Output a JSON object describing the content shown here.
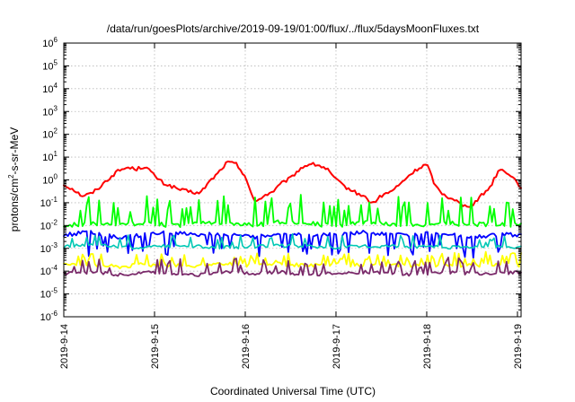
{
  "chart_data": {
    "type": "line",
    "title": "/data/run/goesPlots/archive/2019-09-19/01:00/flux/../flux/5daysMoonFluxes.txt",
    "xlabel": "Coordinated Universal Time (UTC)",
    "ylabel": "protons/cm²-s-sr-MeV",
    "ylabel_parts": {
      "pre": "protons/cm",
      "sup": "2",
      "post": "-s-sr-MeV"
    },
    "y_scale": "log",
    "ylim": [
      1e-06,
      1000000.0
    ],
    "y_tick_labels": [
      {
        "base": "10",
        "exp": "-6"
      },
      {
        "base": "10",
        "exp": "-5"
      },
      {
        "base": "10",
        "exp": "-4"
      },
      {
        "base": "10",
        "exp": "-3"
      },
      {
        "base": "10",
        "exp": "-2"
      },
      {
        "base": "10",
        "exp": "-1"
      },
      {
        "base": "10",
        "exp": "0"
      },
      {
        "base": "10",
        "exp": "1"
      },
      {
        "base": "10",
        "exp": "2"
      },
      {
        "base": "10",
        "exp": "3"
      },
      {
        "base": "10",
        "exp": "4"
      },
      {
        "base": "10",
        "exp": "5"
      },
      {
        "base": "10",
        "exp": "6"
      }
    ],
    "xlim": [
      "2019-09-14T00:00",
      "2019-09-19T01:00"
    ],
    "x_tick_labels": [
      "2019-9-14",
      "2019-9-15",
      "2019-9-16",
      "2019-9-17",
      "2019-9-18",
      "2019-9-19"
    ],
    "grid": true,
    "legend": "none",
    "series": [
      {
        "color": "#ff0000",
        "x": [
          0,
          0.1,
          0.2,
          0.3,
          0.4,
          0.5,
          0.6,
          0.7,
          0.8,
          0.9,
          1.0,
          1.1,
          1.2,
          1.3,
          1.4,
          1.5,
          1.6,
          1.7,
          1.8,
          1.9,
          2.0,
          2.1,
          2.2,
          2.3,
          2.4,
          2.5,
          2.6,
          2.7,
          2.8,
          2.9,
          3.0,
          3.1,
          3.2,
          3.3,
          3.4,
          3.5,
          3.6,
          3.7,
          3.8,
          3.9,
          4.0,
          4.1,
          4.2,
          4.3,
          4.4,
          4.5,
          4.6,
          4.7,
          4.8,
          4.9,
          5.0,
          5.04
        ],
        "y": [
          0.6,
          0.4,
          0.2,
          0.25,
          0.5,
          1.2,
          2.5,
          3.5,
          3.0,
          4.0,
          1.5,
          0.7,
          0.5,
          0.35,
          0.3,
          0.25,
          0.8,
          2.0,
          6.0,
          5.0,
          1.5,
          0.1,
          0.2,
          0.3,
          0.7,
          1.2,
          3.0,
          5.0,
          4.5,
          3.0,
          1.0,
          0.5,
          0.3,
          0.2,
          0.09,
          0.2,
          0.3,
          0.6,
          1.5,
          3.0,
          5.0,
          0.5,
          0.2,
          0.15,
          0.07,
          0.08,
          0.2,
          0.5,
          3.0,
          2.0,
          0.8,
          0.4
        ]
      },
      {
        "color": "#00ff00",
        "x": [
          0,
          0.3,
          0.6,
          0.9,
          1.2,
          1.5,
          1.8,
          2.1,
          2.4,
          2.7,
          3.0,
          3.3,
          3.6,
          3.9,
          4.2,
          4.5,
          4.8,
          5.04
        ],
        "y": [
          0.01,
          0.012,
          0.01,
          0.014,
          0.01,
          0.012,
          0.013,
          0.01,
          0.015,
          0.012,
          0.01,
          0.014,
          0.012,
          0.011,
          0.013,
          0.011,
          0.012,
          0.01
        ]
      },
      {
        "color": "#0000ff",
        "x": [
          0,
          0.3,
          0.6,
          0.9,
          1.2,
          1.5,
          1.8,
          2.1,
          2.4,
          2.7,
          3.0,
          3.3,
          3.6,
          3.9,
          4.2,
          4.5,
          4.8,
          5.04
        ],
        "y": [
          0.004,
          0.005,
          0.003,
          0.004,
          0.005,
          0.004,
          0.004,
          0.003,
          0.005,
          0.004,
          0.004,
          0.005,
          0.004,
          0.004,
          0.005,
          0.003,
          0.004,
          0.004
        ]
      },
      {
        "color": "#00c8b4",
        "x": [
          0,
          0.3,
          0.6,
          0.9,
          1.2,
          1.5,
          1.8,
          2.1,
          2.4,
          2.7,
          3.0,
          3.3,
          3.6,
          3.9,
          4.2,
          4.5,
          4.8,
          5.04
        ],
        "y": [
          0.0012,
          0.0014,
          0.0012,
          0.0011,
          0.0013,
          0.0012,
          0.0011,
          0.0012,
          0.0013,
          0.0012,
          0.0011,
          0.0012,
          0.0013,
          0.0012,
          0.0011,
          0.0012,
          0.0012,
          0.0011
        ]
      },
      {
        "color": "#ffff00",
        "x": [
          0,
          0.3,
          0.6,
          0.9,
          1.2,
          1.5,
          1.8,
          2.1,
          2.4,
          2.7,
          3.0,
          3.3,
          3.6,
          3.9,
          4.2,
          4.5,
          4.8,
          5.04
        ],
        "y": [
          0.00018,
          0.0002,
          0.00016,
          0.0002,
          0.00018,
          0.00017,
          0.0002,
          0.00018,
          0.0002,
          0.00017,
          0.00019,
          0.00018,
          0.0002,
          0.00017,
          0.00019,
          0.00018,
          0.0002,
          0.00018
        ]
      },
      {
        "color": "#7a2a6a",
        "x": [
          0,
          0.3,
          0.6,
          0.9,
          1.2,
          1.5,
          1.8,
          2.1,
          2.4,
          2.7,
          3.0,
          3.3,
          3.6,
          3.9,
          4.2,
          4.5,
          4.8,
          5.04
        ],
        "y": [
          8e-05,
          9e-05,
          7e-05,
          9e-05,
          8e-05,
          7e-05,
          9e-05,
          8e-05,
          9e-05,
          7e-05,
          8e-05,
          9e-05,
          8e-05,
          7e-05,
          9e-05,
          8e-05,
          8e-05,
          9e-05
        ]
      }
    ]
  }
}
